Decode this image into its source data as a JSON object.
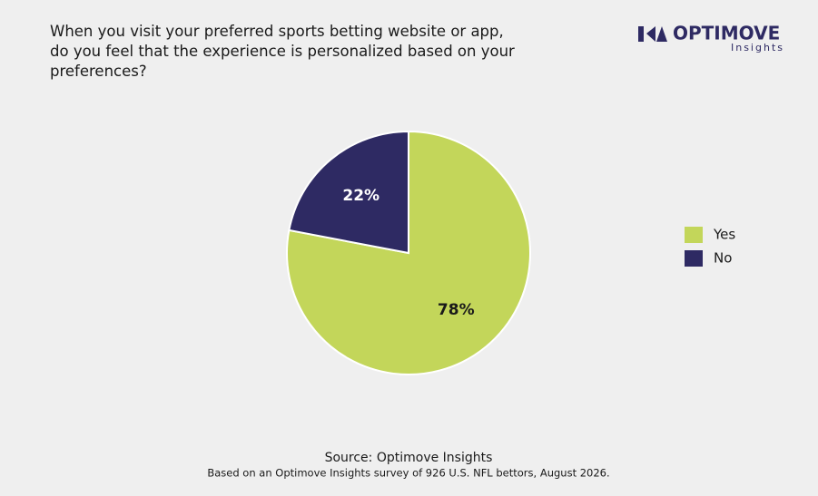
{
  "logo": {
    "name": "OPTIMOVE",
    "tagline": "Insights"
  },
  "chart_data": {
    "type": "pie",
    "title": "When you visit your preferred sports betting website or app, do you feel that the experience is personalized based on your preferences?",
    "categories": [
      "Yes",
      "No"
    ],
    "values": [
      78,
      22
    ],
    "value_labels": [
      "78%",
      "22%"
    ],
    "colors": [
      "#c3d65a",
      "#2e2a63"
    ],
    "legend": "right",
    "source": "Source: Optimove Insights",
    "note": "Based on an Optimove Insights survey of 926 U.S. NFL bettors, August 2026."
  }
}
